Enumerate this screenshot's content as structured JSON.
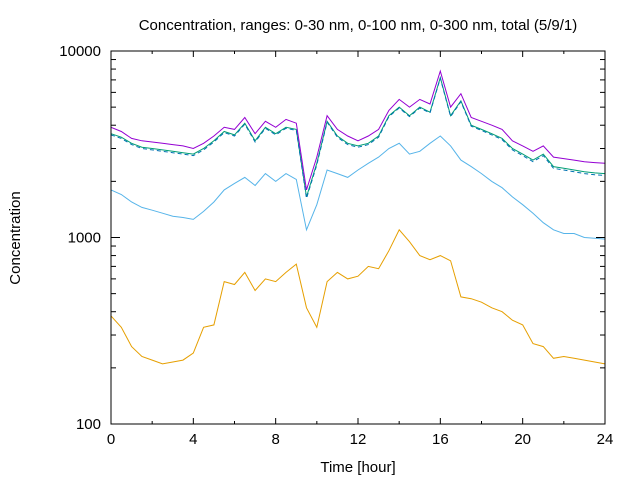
{
  "chart_data": {
    "type": "line",
    "title": "Concentration, ranges: 0-30 nm, 0-100 nm, 0-300 nm, total (5/9/1)",
    "xlabel": "Time [hour]",
    "ylabel": "Concentration",
    "xlim": [
      0,
      24
    ],
    "ylim": [
      100,
      10000
    ],
    "yscale": "log",
    "grid": false,
    "legend": "none",
    "x_ticks": [
      "0",
      "4",
      "8",
      "12",
      "16",
      "20",
      "24"
    ],
    "y_ticks": [
      "100",
      "1000",
      "10000"
    ],
    "x": [
      0,
      0.5,
      1,
      1.5,
      2,
      2.5,
      3,
      3.5,
      4,
      4.5,
      5,
      5.5,
      6,
      6.5,
      7,
      7.5,
      8,
      8.5,
      9,
      9.5,
      10,
      10.5,
      11,
      11.5,
      12,
      12.5,
      13,
      13.5,
      14,
      14.5,
      15,
      15.5,
      16,
      16.5,
      17,
      17.5,
      18,
      18.5,
      19,
      19.5,
      20,
      20.5,
      21,
      21.5,
      22,
      22.5,
      23,
      23.5,
      24
    ],
    "series": [
      {
        "color": "#e69f00",
        "values": [
          380,
          330,
          260,
          230,
          220,
          210,
          215,
          220,
          240,
          330,
          340,
          580,
          560,
          650,
          520,
          600,
          580,
          650,
          720,
          420,
          330,
          580,
          650,
          600,
          620,
          700,
          680,
          850,
          1100,
          950,
          800,
          760,
          800,
          750,
          480,
          470,
          450,
          420,
          400,
          360,
          340,
          270,
          260,
          225,
          230,
          225,
          220,
          215,
          210
        ]
      },
      {
        "color": "#56b4e9",
        "values": [
          1800,
          1700,
          1550,
          1450,
          1400,
          1350,
          1300,
          1280,
          1250,
          1380,
          1550,
          1800,
          1950,
          2100,
          1900,
          2200,
          2000,
          2200,
          2050,
          1100,
          1500,
          2300,
          2200,
          2100,
          2300,
          2500,
          2700,
          3000,
          3200,
          2800,
          2900,
          3200,
          3500,
          3100,
          2600,
          2400,
          2200,
          2000,
          1850,
          1650,
          1500,
          1350,
          1200,
          1100,
          1050,
          1050,
          1000,
          990,
          980
        ]
      },
      {
        "color": "#009e73",
        "values": [
          3600,
          3450,
          3200,
          3050,
          3000,
          2950,
          2900,
          2850,
          2800,
          3000,
          3300,
          3700,
          3550,
          4100,
          3300,
          3900,
          3600,
          3900,
          3800,
          1650,
          2500,
          4200,
          3500,
          3200,
          3100,
          3200,
          3500,
          4500,
          5000,
          4500,
          5000,
          4700,
          7200,
          4500,
          5400,
          4000,
          3800,
          3600,
          3400,
          3000,
          2800,
          2600,
          2800,
          2400,
          2350,
          2300,
          2250,
          2220,
          2200
        ]
      },
      {
        "color": "#9400d3",
        "values": [
          3900,
          3700,
          3400,
          3300,
          3250,
          3200,
          3150,
          3100,
          3000,
          3200,
          3500,
          3900,
          3800,
          4400,
          3600,
          4200,
          3900,
          4300,
          4100,
          1800,
          2700,
          4500,
          3800,
          3500,
          3300,
          3500,
          3800,
          4800,
          5500,
          5000,
          5500,
          5200,
          7800,
          5000,
          5900,
          4400,
          4200,
          4000,
          3800,
          3300,
          3100,
          2900,
          3100,
          2700,
          2650,
          2600,
          2550,
          2520,
          2500
        ]
      },
      {
        "color": "#0072b2",
        "dash": true,
        "values": [
          3550,
          3400,
          3150,
          3000,
          2950,
          2900,
          2850,
          2800,
          2750,
          2950,
          3250,
          3650,
          3500,
          4050,
          3250,
          3850,
          3550,
          3850,
          3750,
          1620,
          2450,
          4150,
          3450,
          3150,
          3050,
          3150,
          3450,
          4450,
          4950,
          4450,
          4950,
          4650,
          7150,
          4450,
          5350,
          3950,
          3750,
          3550,
          3350,
          2950,
          2750,
          2550,
          2750,
          2350,
          2300,
          2250,
          2200,
          2170,
          2150
        ]
      }
    ]
  }
}
